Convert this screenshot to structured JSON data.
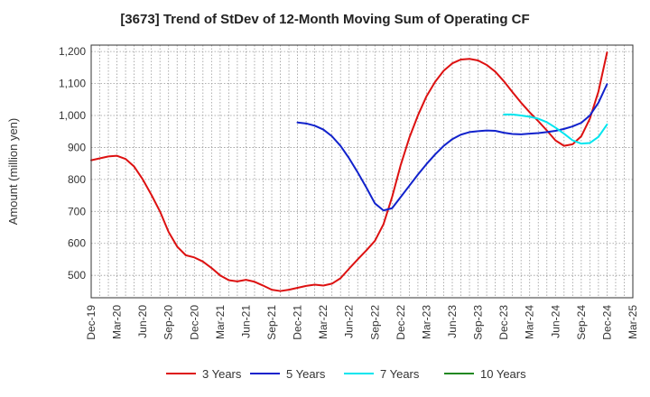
{
  "chart_data": {
    "type": "line",
    "title": "[3673]  Trend of StDev of 12-Month Moving Sum of Operating CF",
    "ylabel": "Amount (million yen)",
    "xlabel": "",
    "ylim": [
      430,
      1220
    ],
    "yticks": [
      500,
      600,
      700,
      800,
      900,
      1000,
      1100,
      1200
    ],
    "ytick_labels": [
      "500",
      "600",
      "700",
      "800",
      "900",
      "1,000",
      "1,100",
      "1,200"
    ],
    "xlim": [
      "2019-12",
      "2025-03"
    ],
    "xtick_labels": [
      "Dec-19",
      "Mar-20",
      "Jun-20",
      "Sep-20",
      "Dec-20",
      "Mar-21",
      "Jun-21",
      "Sep-21",
      "Dec-21",
      "Mar-22",
      "Jun-22",
      "Sep-22",
      "Dec-22",
      "Mar-23",
      "Jun-23",
      "Sep-23",
      "Dec-23",
      "Mar-24",
      "Jun-24",
      "Sep-24",
      "Dec-24",
      "Mar-25"
    ],
    "grid": true,
    "legend_position": "bottom",
    "series": [
      {
        "name": "3 Years",
        "color": "#dd1111",
        "points": [
          [
            "2019-12",
            860
          ],
          [
            "2020-01",
            866
          ],
          [
            "2020-02",
            872
          ],
          [
            "2020-03",
            874
          ],
          [
            "2020-04",
            864
          ],
          [
            "2020-05",
            840
          ],
          [
            "2020-06",
            800
          ],
          [
            "2020-07",
            752
          ],
          [
            "2020-08",
            700
          ],
          [
            "2020-09",
            636
          ],
          [
            "2020-10",
            590
          ],
          [
            "2020-11",
            563
          ],
          [
            "2020-12",
            556
          ],
          [
            "2021-01",
            543
          ],
          [
            "2021-02",
            523
          ],
          [
            "2021-03",
            500
          ],
          [
            "2021-04",
            485
          ],
          [
            "2021-05",
            481
          ],
          [
            "2021-06",
            486
          ],
          [
            "2021-07",
            480
          ],
          [
            "2021-08",
            468
          ],
          [
            "2021-09",
            455
          ],
          [
            "2021-10",
            451
          ],
          [
            "2021-11",
            455
          ],
          [
            "2021-12",
            461
          ],
          [
            "2022-01",
            467
          ],
          [
            "2022-02",
            471
          ],
          [
            "2022-03",
            468
          ],
          [
            "2022-04",
            474
          ],
          [
            "2022-05",
            491
          ],
          [
            "2022-06",
            521
          ],
          [
            "2022-07",
            550
          ],
          [
            "2022-08",
            578
          ],
          [
            "2022-09",
            608
          ],
          [
            "2022-10",
            660
          ],
          [
            "2022-11",
            745
          ],
          [
            "2022-12",
            845
          ],
          [
            "2023-01",
            930
          ],
          [
            "2023-02",
            1000
          ],
          [
            "2023-03",
            1060
          ],
          [
            "2023-04",
            1105
          ],
          [
            "2023-05",
            1140
          ],
          [
            "2023-06",
            1163
          ],
          [
            "2023-07",
            1175
          ],
          [
            "2023-08",
            1177
          ],
          [
            "2023-09",
            1172
          ],
          [
            "2023-10",
            1158
          ],
          [
            "2023-11",
            1137
          ],
          [
            "2023-12",
            1107
          ],
          [
            "2024-01",
            1073
          ],
          [
            "2024-02",
            1040
          ],
          [
            "2024-03",
            1010
          ],
          [
            "2024-04",
            982
          ],
          [
            "2024-05",
            953
          ],
          [
            "2024-06",
            922
          ],
          [
            "2024-07",
            905
          ],
          [
            "2024-08",
            910
          ],
          [
            "2024-09",
            935
          ],
          [
            "2024-10",
            990
          ],
          [
            "2024-11",
            1075
          ],
          [
            "2024-12",
            1197
          ]
        ]
      },
      {
        "name": "5 Years",
        "color": "#1122cc",
        "points": [
          [
            "2021-12",
            978
          ],
          [
            "2022-01",
            975
          ],
          [
            "2022-02",
            968
          ],
          [
            "2022-03",
            956
          ],
          [
            "2022-04",
            935
          ],
          [
            "2022-05",
            905
          ],
          [
            "2022-06",
            866
          ],
          [
            "2022-07",
            822
          ],
          [
            "2022-08",
            775
          ],
          [
            "2022-09",
            725
          ],
          [
            "2022-10",
            703
          ],
          [
            "2022-11",
            710
          ],
          [
            "2022-12",
            745
          ],
          [
            "2023-01",
            780
          ],
          [
            "2023-02",
            815
          ],
          [
            "2023-03",
            848
          ],
          [
            "2023-04",
            878
          ],
          [
            "2023-05",
            905
          ],
          [
            "2023-06",
            926
          ],
          [
            "2023-07",
            940
          ],
          [
            "2023-08",
            948
          ],
          [
            "2023-09",
            951
          ],
          [
            "2023-10",
            953
          ],
          [
            "2023-11",
            952
          ],
          [
            "2023-12",
            946
          ],
          [
            "2024-01",
            942
          ],
          [
            "2024-02",
            941
          ],
          [
            "2024-03",
            943
          ],
          [
            "2024-04",
            945
          ],
          [
            "2024-05",
            948
          ],
          [
            "2024-06",
            952
          ],
          [
            "2024-07",
            958
          ],
          [
            "2024-08",
            966
          ],
          [
            "2024-09",
            977
          ],
          [
            "2024-10",
            1000
          ],
          [
            "2024-11",
            1040
          ],
          [
            "2024-12",
            1098
          ]
        ]
      },
      {
        "name": "7 Years",
        "color": "#00e5ee",
        "points": [
          [
            "2023-12",
            1003
          ],
          [
            "2024-01",
            1003
          ],
          [
            "2024-02",
            1000
          ],
          [
            "2024-03",
            996
          ],
          [
            "2024-04",
            990
          ],
          [
            "2024-05",
            979
          ],
          [
            "2024-06",
            962
          ],
          [
            "2024-07",
            943
          ],
          [
            "2024-08",
            922
          ],
          [
            "2024-09",
            912
          ],
          [
            "2024-10",
            914
          ],
          [
            "2024-11",
            933
          ],
          [
            "2024-12",
            972
          ]
        ]
      },
      {
        "name": "10 Years",
        "color": "#228822",
        "points": []
      }
    ]
  }
}
